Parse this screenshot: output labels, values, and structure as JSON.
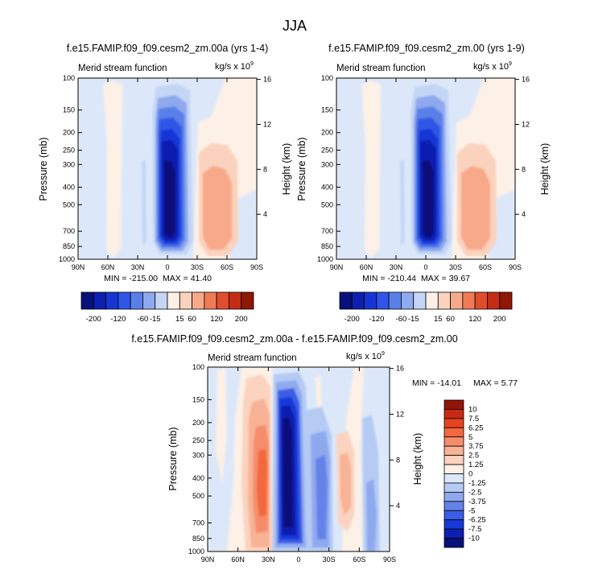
{
  "figure_title": "JJA",
  "chart_data": [
    {
      "type": "heatmap",
      "title": "f.e15.FAMIP.f09_f09.cesm2_zm.00a (yrs 1-4)",
      "subtitle": "Merid stream function",
      "units": "kg/s x 10",
      "units_exp": "9",
      "ylabel": "Pressure (mb)",
      "y2label": "Height (km)",
      "x_ticks": [
        "90N",
        "60N",
        "30N",
        "0",
        "30S",
        "60S",
        "90S"
      ],
      "y_ticks": [
        "100",
        "150",
        "200",
        "250",
        "300",
        "400",
        "500",
        "700",
        "850",
        "1000"
      ],
      "y2_ticks": [
        "16",
        "12",
        "8",
        "4"
      ],
      "min_text": "MIN = -215.00",
      "max_text": "MAX = 41.40",
      "min": -215.0,
      "max": 41.4
    },
    {
      "type": "heatmap",
      "title": "f.e15.FAMIP.f09_f09.cesm2_zm.00 (yrs 1-9)",
      "subtitle": "Merid stream function",
      "units": "kg/s x 10",
      "units_exp": "9",
      "ylabel": "Pressure (mb)",
      "y2label": "Height (km)",
      "x_ticks": [
        "90N",
        "60N",
        "30N",
        "0",
        "30S",
        "60S",
        "90S"
      ],
      "y_ticks": [
        "100",
        "150",
        "200",
        "250",
        "300",
        "400",
        "500",
        "700",
        "850",
        "1000"
      ],
      "y2_ticks": [
        "16",
        "12",
        "8",
        "4"
      ],
      "min_text": "MIN = -210.44",
      "max_text": "MAX = 39.67",
      "min": -210.44,
      "max": 39.67
    },
    {
      "type": "heatmap",
      "title": "f.e15.FAMIP.f09_f09.cesm2_zm.00a - f.e15.FAMIP.f09_f09.cesm2_zm.00",
      "subtitle": "Merid stream function",
      "units": "kg/s x 10",
      "units_exp": "9",
      "ylabel": "Pressure (mb)",
      "y2label": "Height (km)",
      "x_ticks": [
        "90N",
        "60N",
        "30N",
        "0",
        "30S",
        "60S",
        "90S"
      ],
      "y_ticks": [
        "100",
        "150",
        "200",
        "250",
        "300",
        "400",
        "500",
        "700",
        "850",
        "1000"
      ],
      "y2_ticks": [
        "16",
        "12",
        "8",
        "4"
      ],
      "min_text": "MIN = -14.01",
      "max_text": "MAX =  5.77",
      "min": -14.01,
      "max": 5.77
    }
  ],
  "colorbar_main": {
    "labels": [
      "-200",
      "-120",
      "-60",
      "-15",
      "15",
      "60",
      "120",
      "200"
    ],
    "colors": [
      "#08107a",
      "#0d1fb0",
      "#1735d6",
      "#2f56e6",
      "#5a7fe8",
      "#8fa9ef",
      "#c4d5f6",
      "#fdf0e6",
      "#fbd2bd",
      "#f8a98a",
      "#f07a56",
      "#e14d2b",
      "#c42c15",
      "#8e1706"
    ]
  },
  "colorbar_diff": {
    "labels": [
      "10",
      "7.5",
      "6.25",
      "5",
      "3.75",
      "2.5",
      "1.25",
      "0",
      "-1.25",
      "-2.5",
      "-3.75",
      "-5",
      "-6.25",
      "-7.5",
      "-10"
    ],
    "colors": [
      "#931509",
      "#c82a14",
      "#e6431f",
      "#f3683e",
      "#f58d6c",
      "#f8b295",
      "#fbd3bf",
      "#fdf0e6",
      "#dce8fa",
      "#b5cbf4",
      "#8fa9ef",
      "#6582e8",
      "#3a5ce6",
      "#1838d8",
      "#0d1fb0",
      "#08107a"
    ]
  }
}
